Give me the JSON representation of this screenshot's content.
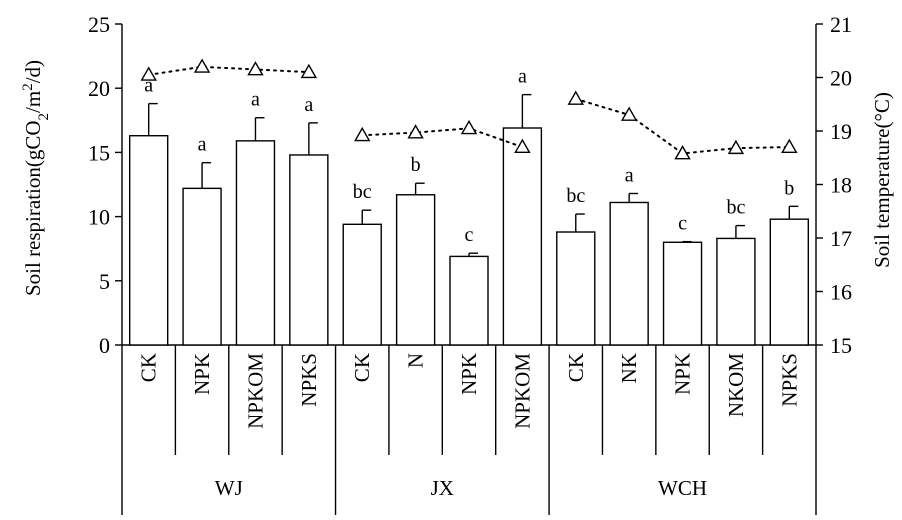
{
  "chart_data": {
    "type": "bar",
    "ylabel": "Soil respiration(gCO2/m2/d)",
    "ylabel_parts": {
      "a": "Soil respiration(gCO",
      "b": "2",
      "c": "/m",
      "d": "2",
      "e": "/d)"
    },
    "y2label": "Soil temperature(°C)",
    "ylim": [
      0,
      25
    ],
    "y_ticks": [
      0,
      5,
      10,
      15,
      20,
      25
    ],
    "y2lim": [
      15,
      21
    ],
    "y2_ticks": [
      15,
      16,
      17,
      18,
      19,
      20,
      21
    ],
    "groups": [
      {
        "name": "WJ",
        "count": 4
      },
      {
        "name": "JX",
        "count": 4
      },
      {
        "name": "WCH",
        "count": 5
      }
    ],
    "categories": [
      "CK",
      "NPK",
      "NPKOM",
      "NPKS",
      "CK",
      "N",
      "NPK",
      "NPKOM",
      "CK",
      "NK",
      "NPK",
      "NKOM",
      "NPKS"
    ],
    "series": [
      {
        "type": "bar",
        "values": [
          16.3,
          12.2,
          15.9,
          14.8,
          9.4,
          11.7,
          6.9,
          16.9,
          8.8,
          11.1,
          8.0,
          8.3,
          9.8
        ],
        "error": [
          2.5,
          2.0,
          1.8,
          2.5,
          1.1,
          0.9,
          0.25,
          2.6,
          1.4,
          0.7,
          0.05,
          1.0,
          1.0
        ],
        "labels": [
          "a",
          "a",
          "a",
          "a",
          "bc",
          "b",
          "c",
          "a",
          "bc",
          "a",
          "c",
          "bc",
          "b"
        ]
      },
      {
        "type": "line",
        "axis": "right",
        "segments": [
          [
            0,
            3
          ],
          [
            4,
            7
          ],
          [
            8,
            12
          ]
        ],
        "values": [
          20.05,
          20.2,
          20.15,
          20.1,
          18.92,
          18.97,
          19.05,
          18.7,
          19.6,
          19.3,
          18.58,
          18.68,
          18.7
        ]
      }
    ]
  }
}
